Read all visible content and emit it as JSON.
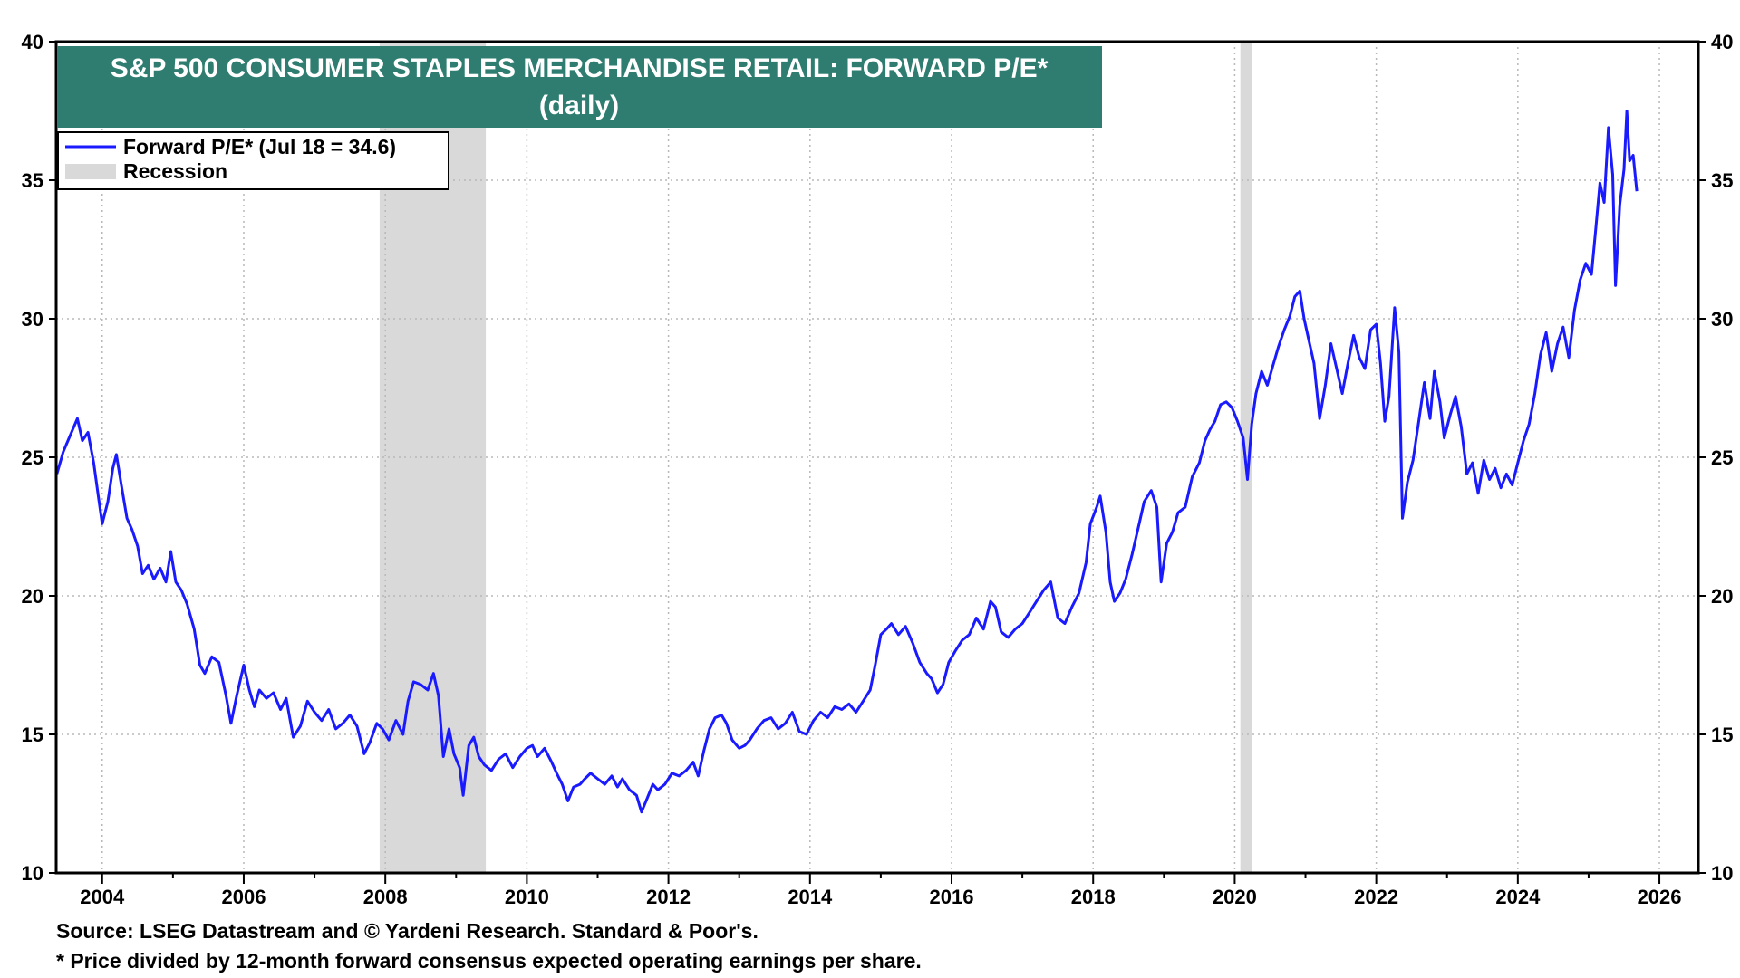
{
  "chart_data": {
    "type": "line",
    "title": "S&P 500 CONSUMER STAPLES MERCHANDISE RETAIL: FORWARD P/E*",
    "subtitle": "(daily)",
    "xlim": [
      2003.35,
      2026.55
    ],
    "ylim": [
      10,
      40
    ],
    "x_ticks": [
      2004,
      2006,
      2008,
      2010,
      2012,
      2014,
      2016,
      2018,
      2020,
      2022,
      2024,
      2026
    ],
    "y_ticks": [
      10,
      15,
      20,
      25,
      30,
      35,
      40
    ],
    "grid": true,
    "legend_position": "top-left",
    "colors": {
      "series": "#1a1aff",
      "recession": "#d9d9d9",
      "title_band": "#2e7d70"
    },
    "recessions": [
      {
        "start": 2007.92,
        "end": 2009.42
      },
      {
        "start": 2020.08,
        "end": 2020.25
      }
    ],
    "legend": [
      {
        "label": "Forward P/E* (Jul 18 = 34.6)",
        "kind": "line"
      },
      {
        "label": "Recession",
        "kind": "box"
      }
    ],
    "series": [
      {
        "name": "Forward P/E* (Jul 18 = 34.6)",
        "points": [
          [
            2003.36,
            24.4
          ],
          [
            2003.45,
            25.2
          ],
          [
            2003.55,
            25.8
          ],
          [
            2003.65,
            26.4
          ],
          [
            2003.72,
            25.6
          ],
          [
            2003.8,
            25.9
          ],
          [
            2003.88,
            24.8
          ],
          [
            2003.95,
            23.5
          ],
          [
            2004.0,
            22.6
          ],
          [
            2004.08,
            23.4
          ],
          [
            2004.15,
            24.6
          ],
          [
            2004.2,
            25.1
          ],
          [
            2004.27,
            24.0
          ],
          [
            2004.35,
            22.8
          ],
          [
            2004.42,
            22.4
          ],
          [
            2004.5,
            21.8
          ],
          [
            2004.57,
            20.8
          ],
          [
            2004.65,
            21.1
          ],
          [
            2004.73,
            20.6
          ],
          [
            2004.82,
            21.0
          ],
          [
            2004.9,
            20.5
          ],
          [
            2004.97,
            21.6
          ],
          [
            2005.04,
            20.5
          ],
          [
            2005.12,
            20.2
          ],
          [
            2005.2,
            19.7
          ],
          [
            2005.3,
            18.8
          ],
          [
            2005.38,
            17.5
          ],
          [
            2005.45,
            17.2
          ],
          [
            2005.55,
            17.8
          ],
          [
            2005.65,
            17.6
          ],
          [
            2005.75,
            16.4
          ],
          [
            2005.82,
            15.4
          ],
          [
            2005.9,
            16.4
          ],
          [
            2006.0,
            17.5
          ],
          [
            2006.08,
            16.6
          ],
          [
            2006.15,
            16.0
          ],
          [
            2006.22,
            16.6
          ],
          [
            2006.32,
            16.3
          ],
          [
            2006.42,
            16.5
          ],
          [
            2006.52,
            15.9
          ],
          [
            2006.6,
            16.3
          ],
          [
            2006.7,
            14.9
          ],
          [
            2006.8,
            15.3
          ],
          [
            2006.9,
            16.2
          ],
          [
            2007.0,
            15.8
          ],
          [
            2007.1,
            15.5
          ],
          [
            2007.2,
            15.9
          ],
          [
            2007.3,
            15.2
          ],
          [
            2007.4,
            15.4
          ],
          [
            2007.5,
            15.7
          ],
          [
            2007.6,
            15.3
          ],
          [
            2007.7,
            14.3
          ],
          [
            2007.78,
            14.7
          ],
          [
            2007.88,
            15.4
          ],
          [
            2007.96,
            15.2
          ],
          [
            2008.05,
            14.8
          ],
          [
            2008.15,
            15.5
          ],
          [
            2008.25,
            15.0
          ],
          [
            2008.32,
            16.2
          ],
          [
            2008.4,
            16.9
          ],
          [
            2008.5,
            16.8
          ],
          [
            2008.6,
            16.6
          ],
          [
            2008.68,
            17.2
          ],
          [
            2008.75,
            16.4
          ],
          [
            2008.82,
            14.2
          ],
          [
            2008.9,
            15.2
          ],
          [
            2008.97,
            14.3
          ],
          [
            2009.05,
            13.8
          ],
          [
            2009.1,
            12.8
          ],
          [
            2009.18,
            14.6
          ],
          [
            2009.25,
            14.9
          ],
          [
            2009.32,
            14.2
          ],
          [
            2009.4,
            13.9
          ],
          [
            2009.5,
            13.7
          ],
          [
            2009.6,
            14.1
          ],
          [
            2009.7,
            14.3
          ],
          [
            2009.8,
            13.8
          ],
          [
            2009.9,
            14.2
          ],
          [
            2010.0,
            14.5
          ],
          [
            2010.08,
            14.6
          ],
          [
            2010.15,
            14.2
          ],
          [
            2010.25,
            14.5
          ],
          [
            2010.35,
            14.0
          ],
          [
            2010.42,
            13.6
          ],
          [
            2010.5,
            13.2
          ],
          [
            2010.58,
            12.6
          ],
          [
            2010.66,
            13.1
          ],
          [
            2010.75,
            13.2
          ],
          [
            2010.82,
            13.4
          ],
          [
            2010.9,
            13.6
          ],
          [
            2011.0,
            13.4
          ],
          [
            2011.1,
            13.2
          ],
          [
            2011.2,
            13.5
          ],
          [
            2011.28,
            13.1
          ],
          [
            2011.35,
            13.4
          ],
          [
            2011.45,
            13.0
          ],
          [
            2011.55,
            12.8
          ],
          [
            2011.62,
            12.2
          ],
          [
            2011.7,
            12.7
          ],
          [
            2011.78,
            13.2
          ],
          [
            2011.85,
            13.0
          ],
          [
            2011.95,
            13.2
          ],
          [
            2012.05,
            13.6
          ],
          [
            2012.15,
            13.5
          ],
          [
            2012.25,
            13.7
          ],
          [
            2012.35,
            14.0
          ],
          [
            2012.42,
            13.5
          ],
          [
            2012.5,
            14.4
          ],
          [
            2012.58,
            15.2
          ],
          [
            2012.66,
            15.6
          ],
          [
            2012.75,
            15.7
          ],
          [
            2012.82,
            15.4
          ],
          [
            2012.9,
            14.8
          ],
          [
            2013.0,
            14.5
          ],
          [
            2013.08,
            14.6
          ],
          [
            2013.15,
            14.8
          ],
          [
            2013.25,
            15.2
          ],
          [
            2013.35,
            15.5
          ],
          [
            2013.45,
            15.6
          ],
          [
            2013.55,
            15.2
          ],
          [
            2013.65,
            15.4
          ],
          [
            2013.75,
            15.8
          ],
          [
            2013.85,
            15.1
          ],
          [
            2013.95,
            15.0
          ],
          [
            2014.05,
            15.5
          ],
          [
            2014.15,
            15.8
          ],
          [
            2014.25,
            15.6
          ],
          [
            2014.35,
            16.0
          ],
          [
            2014.45,
            15.9
          ],
          [
            2014.55,
            16.1
          ],
          [
            2014.65,
            15.8
          ],
          [
            2014.75,
            16.2
          ],
          [
            2014.85,
            16.6
          ],
          [
            2014.92,
            17.5
          ],
          [
            2015.0,
            18.6
          ],
          [
            2015.08,
            18.8
          ],
          [
            2015.15,
            19.0
          ],
          [
            2015.25,
            18.6
          ],
          [
            2015.35,
            18.9
          ],
          [
            2015.45,
            18.3
          ],
          [
            2015.55,
            17.6
          ],
          [
            2015.65,
            17.2
          ],
          [
            2015.72,
            17.0
          ],
          [
            2015.8,
            16.5
          ],
          [
            2015.88,
            16.8
          ],
          [
            2015.96,
            17.6
          ],
          [
            2016.05,
            18.0
          ],
          [
            2016.15,
            18.4
          ],
          [
            2016.25,
            18.6
          ],
          [
            2016.35,
            19.2
          ],
          [
            2016.45,
            18.8
          ],
          [
            2016.55,
            19.8
          ],
          [
            2016.62,
            19.6
          ],
          [
            2016.7,
            18.7
          ],
          [
            2016.8,
            18.5
          ],
          [
            2016.9,
            18.8
          ],
          [
            2017.0,
            19.0
          ],
          [
            2017.1,
            19.4
          ],
          [
            2017.2,
            19.8
          ],
          [
            2017.3,
            20.2
          ],
          [
            2017.4,
            20.5
          ],
          [
            2017.5,
            19.2
          ],
          [
            2017.6,
            19.0
          ],
          [
            2017.7,
            19.6
          ],
          [
            2017.8,
            20.1
          ],
          [
            2017.9,
            21.2
          ],
          [
            2017.96,
            22.6
          ],
          [
            2018.05,
            23.2
          ],
          [
            2018.1,
            23.6
          ],
          [
            2018.18,
            22.3
          ],
          [
            2018.24,
            20.5
          ],
          [
            2018.3,
            19.8
          ],
          [
            2018.38,
            20.1
          ],
          [
            2018.46,
            20.6
          ],
          [
            2018.55,
            21.5
          ],
          [
            2018.65,
            22.6
          ],
          [
            2018.72,
            23.4
          ],
          [
            2018.82,
            23.8
          ],
          [
            2018.9,
            23.2
          ],
          [
            2018.96,
            20.5
          ],
          [
            2019.04,
            21.9
          ],
          [
            2019.12,
            22.3
          ],
          [
            2019.2,
            23.0
          ],
          [
            2019.3,
            23.2
          ],
          [
            2019.4,
            24.3
          ],
          [
            2019.5,
            24.8
          ],
          [
            2019.58,
            25.6
          ],
          [
            2019.65,
            26.0
          ],
          [
            2019.72,
            26.3
          ],
          [
            2019.8,
            26.9
          ],
          [
            2019.88,
            27.0
          ],
          [
            2019.96,
            26.8
          ],
          [
            2020.04,
            26.3
          ],
          [
            2020.12,
            25.7
          ],
          [
            2020.18,
            24.2
          ],
          [
            2020.24,
            26.2
          ],
          [
            2020.3,
            27.3
          ],
          [
            2020.38,
            28.1
          ],
          [
            2020.46,
            27.6
          ],
          [
            2020.55,
            28.4
          ],
          [
            2020.62,
            29.0
          ],
          [
            2020.7,
            29.6
          ],
          [
            2020.78,
            30.1
          ],
          [
            2020.85,
            30.8
          ],
          [
            2020.92,
            31.0
          ],
          [
            2020.98,
            30.0
          ],
          [
            2021.05,
            29.2
          ],
          [
            2021.12,
            28.4
          ],
          [
            2021.2,
            26.4
          ],
          [
            2021.28,
            27.6
          ],
          [
            2021.36,
            29.1
          ],
          [
            2021.44,
            28.2
          ],
          [
            2021.52,
            27.3
          ],
          [
            2021.6,
            28.4
          ],
          [
            2021.68,
            29.4
          ],
          [
            2021.76,
            28.6
          ],
          [
            2021.84,
            28.2
          ],
          [
            2021.92,
            29.6
          ],
          [
            2022.0,
            29.8
          ],
          [
            2022.06,
            28.4
          ],
          [
            2022.12,
            26.3
          ],
          [
            2022.18,
            27.2
          ],
          [
            2022.26,
            30.4
          ],
          [
            2022.32,
            28.8
          ],
          [
            2022.37,
            22.8
          ],
          [
            2022.44,
            24.1
          ],
          [
            2022.52,
            24.9
          ],
          [
            2022.6,
            26.3
          ],
          [
            2022.68,
            27.7
          ],
          [
            2022.76,
            26.4
          ],
          [
            2022.82,
            28.1
          ],
          [
            2022.9,
            27.0
          ],
          [
            2022.96,
            25.7
          ],
          [
            2023.04,
            26.5
          ],
          [
            2023.12,
            27.2
          ],
          [
            2023.2,
            26.1
          ],
          [
            2023.28,
            24.4
          ],
          [
            2023.36,
            24.8
          ],
          [
            2023.44,
            23.7
          ],
          [
            2023.52,
            24.9
          ],
          [
            2023.6,
            24.2
          ],
          [
            2023.68,
            24.6
          ],
          [
            2023.76,
            23.9
          ],
          [
            2023.84,
            24.4
          ],
          [
            2023.92,
            24.0
          ],
          [
            2024.0,
            24.8
          ],
          [
            2024.08,
            25.6
          ],
          [
            2024.16,
            26.2
          ],
          [
            2024.24,
            27.3
          ],
          [
            2024.32,
            28.7
          ],
          [
            2024.4,
            29.5
          ],
          [
            2024.48,
            28.1
          ],
          [
            2024.56,
            29.1
          ],
          [
            2024.64,
            29.7
          ],
          [
            2024.72,
            28.6
          ],
          [
            2024.8,
            30.3
          ],
          [
            2024.88,
            31.4
          ],
          [
            2024.96,
            32.0
          ],
          [
            2025.04,
            31.6
          ],
          [
            2025.1,
            33.2
          ],
          [
            2025.16,
            34.9
          ],
          [
            2025.22,
            34.2
          ],
          [
            2025.28,
            36.9
          ],
          [
            2025.34,
            35.2
          ],
          [
            2025.38,
            31.2
          ],
          [
            2025.44,
            34.1
          ],
          [
            2025.5,
            35.4
          ],
          [
            2025.54,
            37.5
          ],
          [
            2025.58,
            35.7
          ],
          [
            2025.63,
            35.9
          ],
          [
            2025.68,
            34.6
          ]
        ]
      }
    ],
    "footnotes": [
      "Source: LSEG Datastream and © Yardeni Research. Standard & Poor's.",
      "* Price divided by 12-month forward consensus expected operating earnings per share."
    ]
  }
}
